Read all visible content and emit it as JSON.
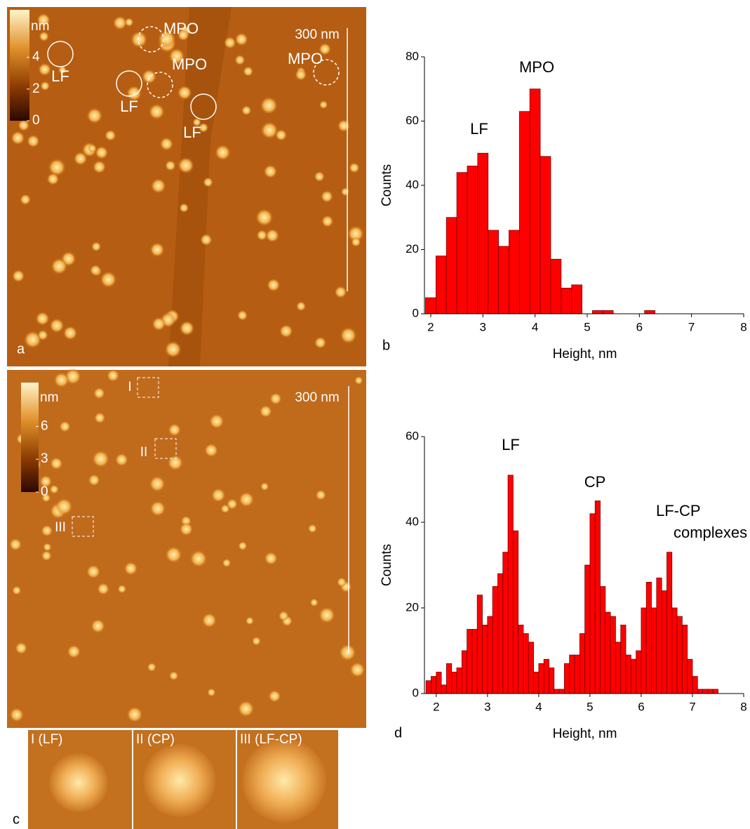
{
  "chart_data": [
    {
      "type": "histogram",
      "panel": "b",
      "x_label": "Height, nm",
      "y_label": "Counts",
      "color": "#ff0000",
      "bins": [
        1.9,
        2.1,
        2.3,
        2.5,
        2.7,
        2.9,
        3.1,
        3.3,
        3.5,
        3.7,
        3.9,
        4.1,
        4.3,
        4.5,
        4.7,
        4.9,
        5.1,
        5.3,
        5.5,
        5.7,
        5.9,
        6.1,
        6.3
      ],
      "values": [
        5,
        18,
        30,
        44,
        46,
        50,
        26,
        21,
        26,
        63,
        70,
        49,
        17,
        8,
        9,
        0,
        1,
        1,
        0,
        0,
        0,
        1
      ],
      "xlim": [
        1.88,
        8
      ],
      "ylim": [
        0,
        80
      ],
      "xticks": [
        2,
        3,
        4,
        5,
        6,
        7,
        8
      ],
      "yticks": [
        0,
        20,
        40,
        60,
        80
      ],
      "annotations": [
        "LF",
        "MPO"
      ]
    },
    {
      "type": "histogram",
      "panel": "d",
      "x_label": "Height, nm",
      "y_label": "Counts",
      "color": "#ff0000",
      "bins": [
        1.8,
        1.9,
        2.0,
        2.1,
        2.2,
        2.3,
        2.4,
        2.5,
        2.6,
        2.7,
        2.8,
        2.9,
        3.0,
        3.1,
        3.2,
        3.3,
        3.4,
        3.5,
        3.6,
        3.7,
        3.8,
        3.9,
        4.0,
        4.1,
        4.2,
        4.3,
        4.4,
        4.5,
        4.6,
        4.7,
        4.8,
        4.9,
        5.0,
        5.1,
        5.2,
        5.3,
        5.4,
        5.5,
        5.6,
        5.7,
        5.8,
        5.9,
        6.0,
        6.1,
        6.2,
        6.3,
        6.4,
        6.5,
        6.6,
        6.7,
        6.8,
        6.9,
        7.0,
        7.1,
        7.2,
        7.3,
        7.4,
        7.5
      ],
      "values": [
        3,
        4,
        5,
        2,
        7,
        5,
        6,
        10,
        15,
        15,
        23,
        16,
        18,
        25,
        28,
        33,
        51,
        38,
        16,
        14,
        12,
        5,
        7,
        8,
        6,
        1,
        1,
        7,
        9,
        9,
        14,
        30,
        42,
        45,
        25,
        19,
        18,
        12,
        16,
        9,
        8,
        10,
        20,
        26,
        20,
        27,
        24,
        33,
        20,
        18,
        16,
        8,
        4,
        1,
        1,
        1,
        1
      ],
      "xlim": [
        1.77,
        8
      ],
      "ylim": [
        0,
        60
      ],
      "xticks": [
        2,
        3,
        4,
        5,
        6,
        7,
        8
      ],
      "yticks": [
        0,
        20,
        40,
        60
      ],
      "annotations": [
        "LF",
        "CP",
        "LF-CP",
        "complexes"
      ]
    }
  ],
  "images": [
    {
      "panel": "a",
      "colorbar_label": "nm",
      "clim": [
        0,
        7
      ],
      "colorbar_ticks": [
        0,
        2,
        4
      ],
      "scale_bar": "300 nm",
      "annotations": [
        "MPO",
        "MPO",
        "MPO",
        "LF",
        "LF",
        "LF"
      ]
    },
    {
      "panel": "c",
      "colorbar_label": "nm",
      "clim": [
        0,
        10
      ],
      "colorbar_ticks": [
        0,
        3,
        6
      ],
      "scale_bar": "300 nm",
      "annotations": [
        "I",
        "II",
        "III"
      ],
      "insets": [
        "I (LF)",
        "II (CP)",
        "III (LF-CP)"
      ]
    }
  ]
}
